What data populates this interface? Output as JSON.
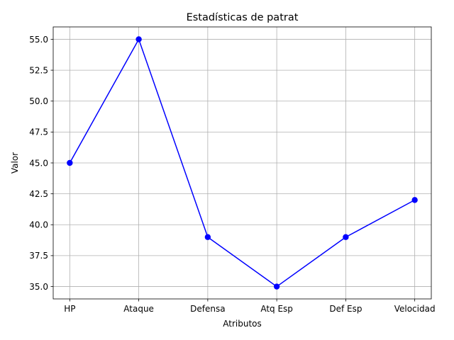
{
  "chart_data": {
    "type": "line",
    "title": "Estadísticas de patrat",
    "xlabel": "Atributos",
    "ylabel": "Valor",
    "categories": [
      "HP",
      "Ataque",
      "Defensa",
      "Atq Esp",
      "Def Esp",
      "Velocidad"
    ],
    "series": [
      {
        "values": [
          45,
          55,
          39,
          35,
          39,
          42
        ],
        "color": "#0000ff",
        "marker": "circle"
      }
    ],
    "ylim": [
      34,
      56
    ],
    "yticks": [
      "35.0",
      "37.5",
      "40.0",
      "42.5",
      "45.0",
      "47.5",
      "50.0",
      "52.5",
      "55.0"
    ],
    "grid": true
  }
}
